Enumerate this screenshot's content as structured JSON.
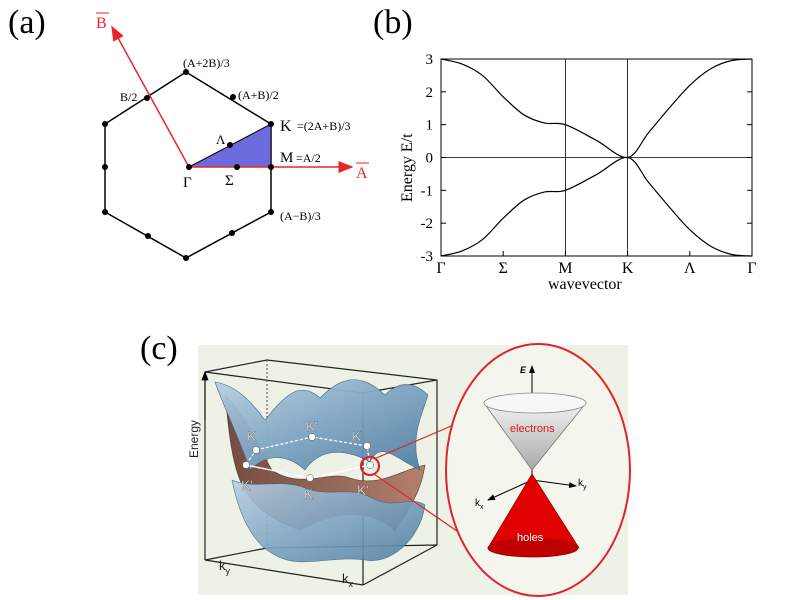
{
  "labels": {
    "a": "(a)",
    "b": "(b)",
    "c": "(c)"
  },
  "panel_a": {
    "vec_A": "A",
    "vec_B": "B",
    "pt_A2B": "(A+2B)/3",
    "pt_ApB2": "(A+B)/2",
    "pt_B2": "B/2",
    "pt_K": "K",
    "pt_K_eq": "=(2A+B)/3",
    "pt_Lambda": "Λ",
    "pt_M": "M",
    "pt_M_eq": "=A/2",
    "pt_Gamma": "Γ",
    "pt_Sigma": "Σ",
    "pt_AmB": "(A−B)/3",
    "colors": {
      "arrow": "#e8262a",
      "triangle": "#6b6bde",
      "hex": "#000000"
    }
  },
  "panel_b": {
    "chart_data": {
      "type": "line",
      "xlabel": "wavevector",
      "ylabel": "Energy E/t",
      "x_ticks": [
        "Γ",
        "Σ",
        "M",
        "K",
        "Λ",
        "Γ"
      ],
      "y_ticks": [
        "3",
        "2",
        "1",
        "0",
        "-1",
        "-2",
        "-3"
      ],
      "ylim": [
        -3,
        3
      ],
      "x": [
        0,
        0.25,
        0.5,
        0.75,
        1.0,
        1.25,
        1.5,
        1.75,
        2.0,
        2.5,
        3.0,
        3.5,
        4.0,
        4.5,
        5.0
      ],
      "series": [
        {
          "values": [
            3.0,
            2.85,
            2.5,
            1.85,
            1.3,
            1.05,
            1.0,
            0.52,
            0.0,
            0.75,
            1.5,
            2.2,
            2.7,
            2.95,
            3.0
          ]
        },
        {
          "values": [
            -3.0,
            -2.85,
            -2.5,
            -1.85,
            -1.3,
            -1.05,
            -1.0,
            -0.52,
            0.0,
            -0.75,
            -1.5,
            -2.2,
            -2.7,
            -2.95,
            -3.0
          ]
        }
      ]
    }
  },
  "panel_c": {
    "energy_axis": "Energy",
    "ky": "k",
    "ky_sub": "y",
    "kx": "k",
    "kx_sub": "x",
    "K": "K",
    "Kp": "K'",
    "zoom_E": "E",
    "zoom_kx": "k",
    "zoom_kx_sub": "x",
    "zoom_ky": "k",
    "zoom_ky_sub": "y",
    "electrons": "electrons",
    "holes": "holes",
    "colors": {
      "circle": "#e0242a",
      "hole_cone": "#e00000",
      "electron_cone": "#c9c9c9",
      "surface_blue": "#7fa6c4",
      "surface_brown": "#8a5a4a"
    }
  }
}
